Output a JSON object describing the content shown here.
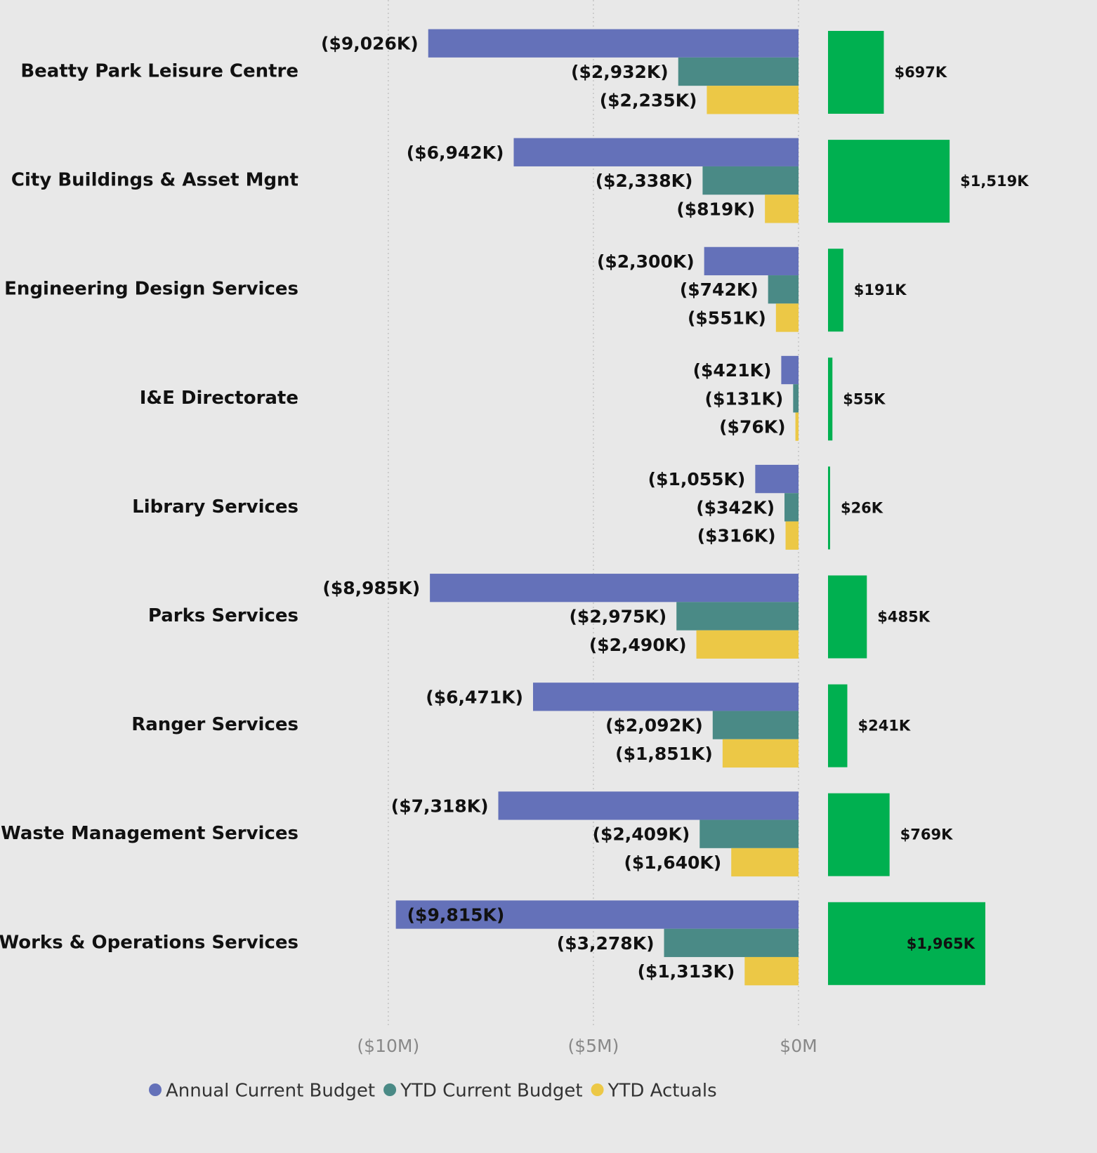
{
  "chart_data": [
    {
      "type": "bar",
      "categories": [
        "Beatty Park Leisure Centre",
        "City Buildings & Asset Mgnt",
        "Engineering Design Services",
        "I&E Directorate",
        "Library Services",
        "Parks Services",
        "Ranger Services",
        "Waste Management Services",
        "Works & Operations Services"
      ],
      "series": [
        {
          "name": "Annual Current Budget",
          "color": "#6471b9",
          "values": [
            -9.026,
            -6.942,
            -2.3,
            -0.421,
            -1.055,
            -8.985,
            -6.471,
            -7.318,
            -9.815
          ],
          "value_labels": [
            "($9,026K)",
            "($6,942K)",
            "($2,300K)",
            "($421K)",
            "($1,055K)",
            "($8,985K)",
            "($6,471K)",
            "($7,318K)",
            "($9,815K)"
          ]
        },
        {
          "name": "YTD Current Budget",
          "color": "#4a8a86",
          "values": [
            -2.932,
            -2.338,
            -0.742,
            -0.131,
            -0.342,
            -2.975,
            -2.092,
            -2.409,
            -3.278
          ],
          "value_labels": [
            "($2,932K)",
            "($2,338K)",
            "($742K)",
            "($131K)",
            "($342K)",
            "($2,975K)",
            "($2,092K)",
            "($2,409K)",
            "($3,278K)"
          ]
        },
        {
          "name": "YTD Actuals",
          "color": "#ecc846",
          "values": [
            -2.235,
            -0.819,
            -0.551,
            -0.076,
            -0.316,
            -2.49,
            -1.851,
            -1.64,
            -1.313
          ],
          "value_labels": [
            "($2,235K)",
            "($819K)",
            "($551K)",
            "($76K)",
            "($316K)",
            "($2,490K)",
            "($1,851K)",
            "($1,640K)",
            "($1,313K)"
          ]
        }
      ],
      "xlim": [
        -12,
        0
      ],
      "xticks": [
        {
          "value": -10,
          "label": "($10M)"
        },
        {
          "value": -5,
          "label": "($5M)"
        },
        {
          "value": 0,
          "label": "$0M"
        }
      ],
      "grid": true,
      "legend": "bottom"
    },
    {
      "type": "bar",
      "color": "#00b050",
      "values": [
        697,
        1519,
        191,
        55,
        26,
        485,
        241,
        769,
        1965
      ],
      "value_labels": [
        "$697K",
        "$1,519K",
        "$191K",
        "$55K",
        "$26K",
        "$485K",
        "$241K",
        "$769K",
        "$1,965K"
      ]
    }
  ]
}
